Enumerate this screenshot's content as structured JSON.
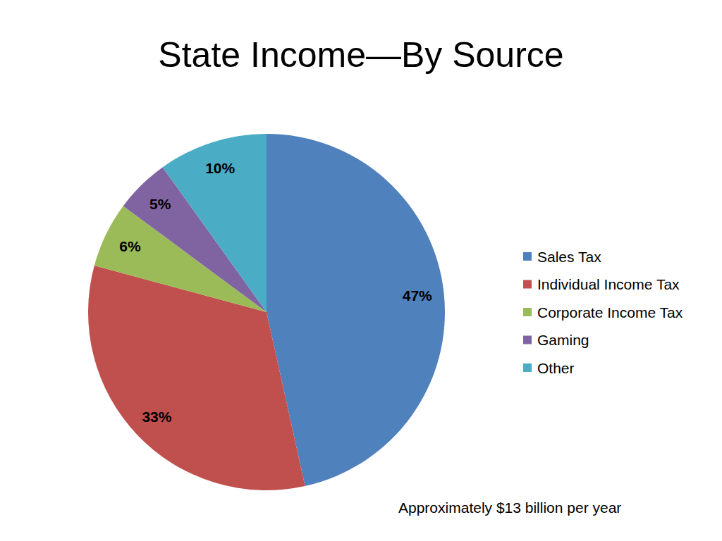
{
  "chart_data": {
    "type": "pie",
    "title": "State Income—By Source",
    "categories": [
      "Sales Tax",
      "Individual Income Tax",
      "Corporate Income Tax",
      "Gaming",
      "Other"
    ],
    "values": [
      47,
      33,
      6,
      5,
      10
    ],
    "value_labels": [
      "47%",
      "33%",
      "6%",
      "5%",
      "10%"
    ],
    "colors": [
      "#4f81bd",
      "#c0504d",
      "#9bbb59",
      "#8064a2",
      "#4bacc6"
    ],
    "data_labels": true,
    "legend": "right",
    "annotation": "Approximately $13 billion per year"
  }
}
